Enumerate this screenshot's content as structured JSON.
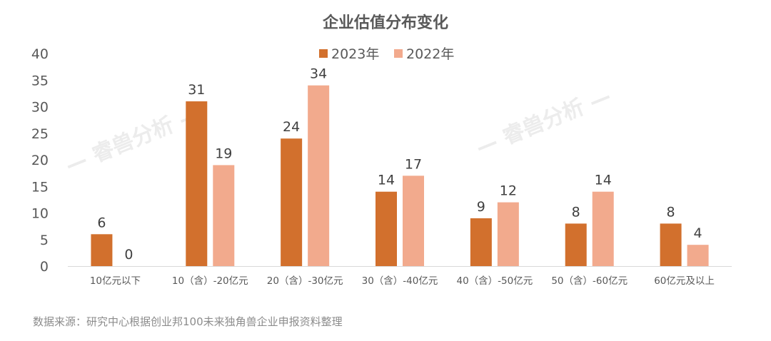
{
  "chart_data": {
    "type": "bar",
    "title": "企业估值分布变化",
    "categories": [
      "10亿元以下",
      "10（含）-20亿元",
      "20（含）-30亿元",
      "30（含）-40亿元",
      "40（含）-50亿元",
      "50（含）-60亿元",
      "60亿元及以上"
    ],
    "series": [
      {
        "name": "2023年",
        "color": "#D2702D",
        "values": [
          6,
          31,
          24,
          14,
          9,
          8,
          8
        ]
      },
      {
        "name": "2022年",
        "color": "#F2AA8D",
        "values": [
          0,
          19,
          34,
          17,
          12,
          14,
          4
        ]
      }
    ],
    "ylim": [
      0,
      40
    ],
    "yticks": [
      0,
      5,
      10,
      15,
      20,
      25,
      30,
      35,
      40
    ],
    "grid": false,
    "legend": "top-center",
    "xlabel": "",
    "ylabel": ""
  },
  "source": "数据来源：研究中心根据创业邦100未来独角兽企业申报资料整理",
  "watermark": "— 睿兽分析 —"
}
